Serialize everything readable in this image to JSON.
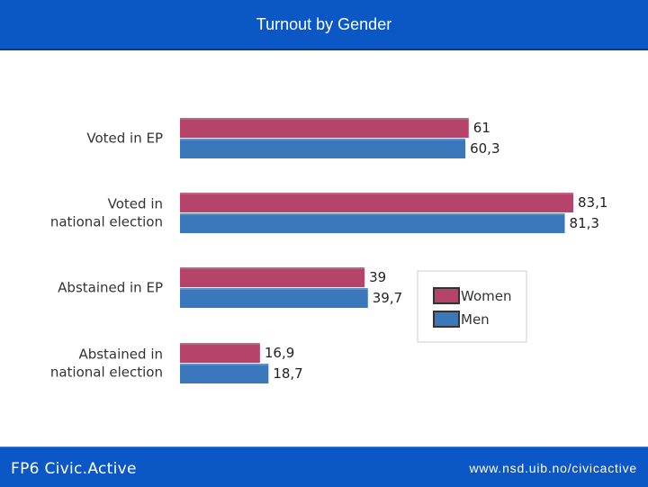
{
  "header": {
    "title": "Turnout by Gender"
  },
  "footer": {
    "brand": "FP6 Civic.Active",
    "url": "www.nsd.uib.no/civicactive"
  },
  "colors": {
    "header_bg": "#0a57c5",
    "women": "#b5436a",
    "men": "#3b78bb"
  },
  "chart_data": {
    "type": "bar",
    "orientation": "horizontal",
    "title": "Turnout by Gender",
    "categories": [
      [
        "Voted in EP"
      ],
      [
        "Voted in",
        "national election"
      ],
      [
        "Abstained in EP"
      ],
      [
        "Abstained in",
        "national election"
      ]
    ],
    "series": [
      {
        "name": "Women",
        "values": [
          61,
          83.1,
          39,
          16.9
        ],
        "labels": [
          "61",
          "83,1",
          "39",
          "16,9"
        ]
      },
      {
        "name": "Men",
        "values": [
          60.3,
          81.3,
          39.7,
          18.7
        ],
        "labels": [
          "60,3",
          "81,3",
          "39,7",
          "18,7"
        ]
      }
    ],
    "xlim": [
      0,
      90
    ],
    "legend_position": "right-middle"
  }
}
